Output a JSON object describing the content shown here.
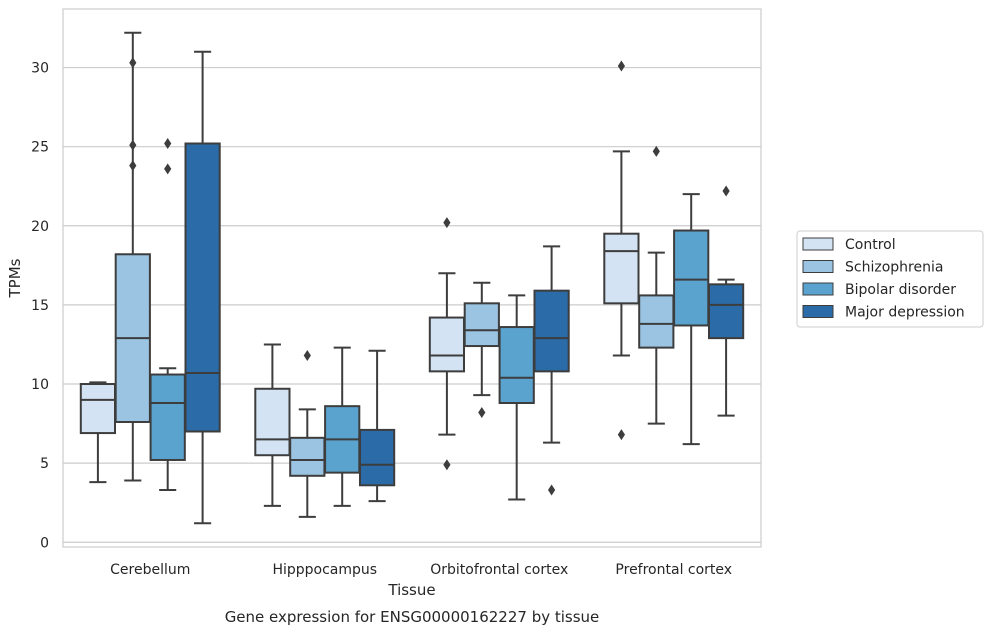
{
  "caption": "Gene expression for ENSG00000162227 by tissue",
  "chart_data": {
    "type": "box",
    "title": "",
    "xlabel": "Tissue",
    "ylabel": "TPMs",
    "ylim": [
      -0.3,
      33.7
    ],
    "yticks": [
      0,
      5,
      10,
      15,
      20,
      25,
      30
    ],
    "grid": "horizontal",
    "legend_position": "right",
    "categories": [
      "Cerebellum",
      "Hipppocampus",
      "Orbitofrontal cortex",
      "Prefrontal cortex"
    ],
    "series": [
      {
        "name": "Control",
        "color": "#d3e3f3",
        "boxes": [
          {
            "whisker_low": 3.8,
            "q1": 6.9,
            "median": 9.0,
            "q3": 10.0,
            "whisker_high": 10.1,
            "outliers": []
          },
          {
            "whisker_low": 2.3,
            "q1": 5.5,
            "median": 6.5,
            "q3": 9.7,
            "whisker_high": 12.5,
            "outliers": []
          },
          {
            "whisker_low": 6.8,
            "q1": 10.8,
            "median": 11.8,
            "q3": 14.2,
            "whisker_high": 17.0,
            "outliers": [
              20.2,
              4.9
            ]
          },
          {
            "whisker_low": 11.8,
            "q1": 15.1,
            "median": 18.4,
            "q3": 19.5,
            "whisker_high": 24.7,
            "outliers": [
              30.1,
              6.8
            ]
          }
        ]
      },
      {
        "name": "Schizophrenia",
        "color": "#9ac4e1",
        "boxes": [
          {
            "whisker_low": 3.9,
            "q1": 7.6,
            "median": 12.9,
            "q3": 18.2,
            "whisker_high": 32.2,
            "outliers": [
              30.3,
              25.1,
              23.8
            ]
          },
          {
            "whisker_low": 1.6,
            "q1": 4.2,
            "median": 5.2,
            "q3": 6.6,
            "whisker_high": 8.4,
            "outliers": [
              11.8
            ]
          },
          {
            "whisker_low": 9.3,
            "q1": 12.4,
            "median": 13.4,
            "q3": 15.1,
            "whisker_high": 16.4,
            "outliers": [
              8.2
            ]
          },
          {
            "whisker_low": 7.5,
            "q1": 12.3,
            "median": 13.8,
            "q3": 15.6,
            "whisker_high": 18.3,
            "outliers": [
              24.7
            ]
          }
        ]
      },
      {
        "name": "Bipolar disorder",
        "color": "#5ba3cf",
        "boxes": [
          {
            "whisker_low": 3.3,
            "q1": 5.2,
            "median": 8.8,
            "q3": 10.6,
            "whisker_high": 11.0,
            "outliers": [
              25.2,
              23.6
            ]
          },
          {
            "whisker_low": 2.3,
            "q1": 4.4,
            "median": 6.5,
            "q3": 8.6,
            "whisker_high": 12.3,
            "outliers": []
          },
          {
            "whisker_low": 2.7,
            "q1": 8.8,
            "median": 10.4,
            "q3": 13.6,
            "whisker_high": 15.6,
            "outliers": []
          },
          {
            "whisker_low": 6.2,
            "q1": 13.7,
            "median": 16.6,
            "q3": 19.7,
            "whisker_high": 22.0,
            "outliers": []
          }
        ]
      },
      {
        "name": "Major depression",
        "color": "#2b6ba8",
        "boxes": [
          {
            "whisker_low": 1.2,
            "q1": 7.0,
            "median": 10.7,
            "q3": 25.2,
            "whisker_high": 31.0,
            "outliers": []
          },
          {
            "whisker_low": 2.6,
            "q1": 3.6,
            "median": 4.9,
            "q3": 7.1,
            "whisker_high": 12.1,
            "outliers": []
          },
          {
            "whisker_low": 6.3,
            "q1": 10.8,
            "median": 12.9,
            "q3": 15.9,
            "whisker_high": 18.7,
            "outliers": [
              3.3
            ]
          },
          {
            "whisker_low": 8.0,
            "q1": 12.9,
            "median": 15.0,
            "q3": 16.3,
            "whisker_high": 16.6,
            "outliers": [
              22.2
            ]
          }
        ]
      }
    ]
  }
}
